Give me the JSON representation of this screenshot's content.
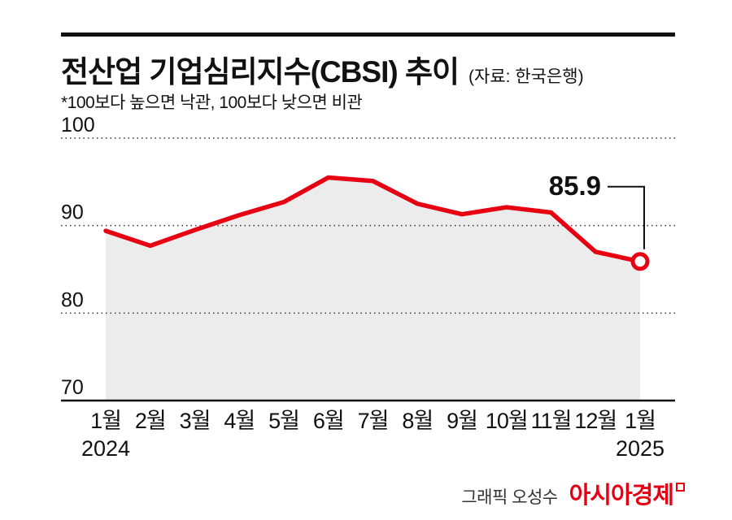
{
  "header": {
    "title": "전산업 기업심리지수(CBSI) 추이",
    "source": "(자료: 한국은행)",
    "subtitle": "*100보다 높으면 낙관, 100보다 낮으면 비관"
  },
  "chart_data": {
    "type": "line",
    "title": "전산업 기업심리지수(CBSI) 추이",
    "x": [
      "1월",
      "2월",
      "3월",
      "4월",
      "5월",
      "6월",
      "7월",
      "8월",
      "9월",
      "10월",
      "11월",
      "12월",
      "1월"
    ],
    "x_year_labels": [
      {
        "index": 0,
        "label": "2024"
      },
      {
        "index": 12,
        "label": "2025"
      }
    ],
    "values": [
      89.4,
      87.7,
      89.5,
      91.2,
      92.7,
      95.5,
      95.1,
      92.5,
      91.3,
      92.1,
      91.5,
      87.0,
      85.9
    ],
    "ylim": [
      70,
      100
    ],
    "yticks": [
      70,
      80,
      90,
      100
    ],
    "grid": true,
    "annotation": {
      "label": "85.9",
      "index": 12
    },
    "line_color": "#e60012",
    "area_color": "#ececec",
    "grid_color": "#333333",
    "axis_color": "#111111"
  },
  "footer": {
    "credit": "그래픽 오성수",
    "brand": "아시아경제"
  }
}
